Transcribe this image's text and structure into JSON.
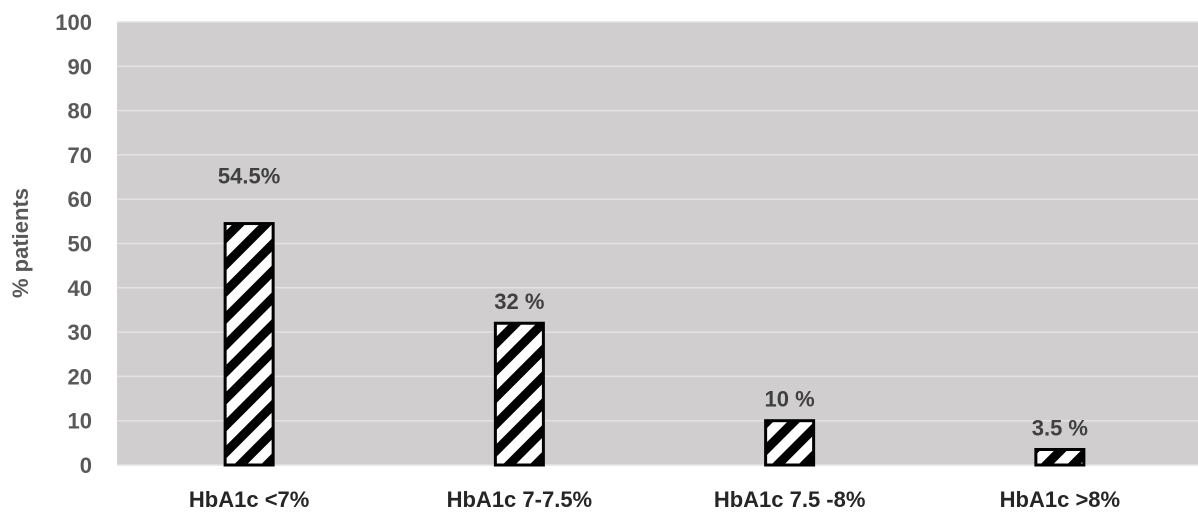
{
  "chart_data": {
    "type": "bar",
    "categories": [
      "HbA1c <7%",
      "HbA1c 7-7.5%",
      "HbA1c 7.5 -8%",
      "HbA1c >8%"
    ],
    "values": [
      54.5,
      32,
      10,
      3.5
    ],
    "data_labels": [
      "54.5%",
      "32 %",
      "10 %",
      "3.5 %"
    ],
    "title": "",
    "xlabel": "",
    "ylabel": "% patients",
    "ylim": [
      0,
      100
    ],
    "yticks": [
      "0",
      "10",
      "20",
      "30",
      "40",
      "50",
      "60",
      "70",
      "80",
      "90",
      "100"
    ],
    "grid": true,
    "legend": "none",
    "bar_fill": "diagonal-hatch",
    "colors": {
      "plot_background": "#d0cece",
      "gridline": "#e4e2e2",
      "bar_stroke": "#000000",
      "bar_fill": "#ffffff",
      "hatch": "#000000"
    }
  }
}
